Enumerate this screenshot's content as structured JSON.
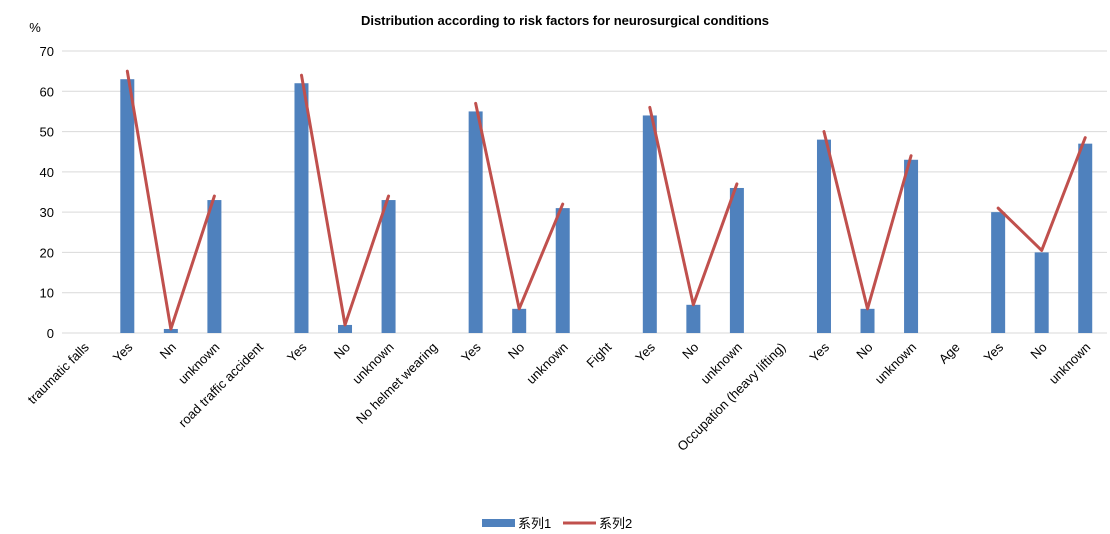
{
  "chart_data": {
    "type": "bar",
    "title": "Distribution according to risk factors for neurosurgical conditions",
    "ylabel": "%",
    "ylim": [
      0,
      70
    ],
    "yticks": [
      0,
      10,
      20,
      30,
      40,
      50,
      60,
      70
    ],
    "grid": true,
    "legend_position": "bottom",
    "categories": [
      "traumatic falls",
      "Yes",
      "Nn",
      "unknown",
      "road traffic accident",
      "Yes",
      "No",
      "unknown",
      "No helmet wearing",
      "Yes",
      "No",
      "unknown",
      "Fight",
      "Yes",
      "No",
      "unknown",
      "Occupation  (heavy lifting)",
      "Yes",
      "No",
      "unknown",
      "Age",
      "Yes",
      "No",
      "unknown"
    ],
    "series": [
      {
        "name": "系列1",
        "type": "bar",
        "color": "#4F81BD",
        "values": [
          null,
          63,
          1,
          33,
          null,
          62,
          2,
          33,
          null,
          55,
          6,
          31,
          null,
          54,
          7,
          36,
          null,
          48,
          6,
          43,
          null,
          30,
          20,
          47
        ]
      },
      {
        "name": "系列2",
        "type": "line",
        "color": "#C0504D",
        "values": [
          null,
          65,
          1,
          34,
          null,
          64,
          2,
          34,
          null,
          57,
          6,
          32,
          null,
          56,
          7,
          37,
          null,
          50,
          6,
          44,
          null,
          31,
          20.5,
          48.5
        ]
      }
    ]
  }
}
